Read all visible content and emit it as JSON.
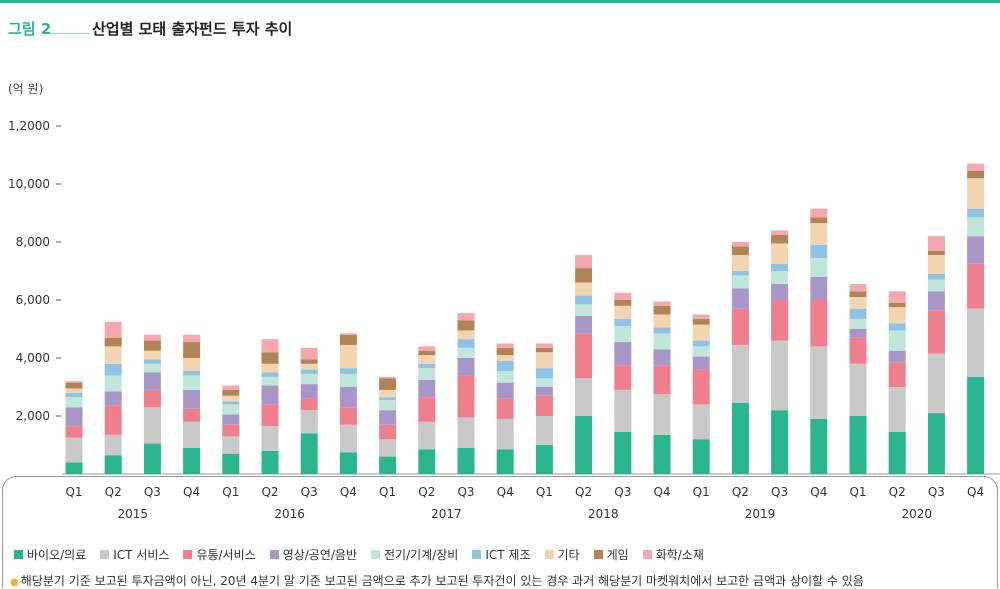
{
  "figure": {
    "number": "그림 2",
    "title": "산업별 모태 출자펀드 투자 추이",
    "unit": "(억 원)"
  },
  "footnote": "해당분기 기준 보고된 투자금액이 아닌, 20년 4분기 말 기준 보고된 금액으로 추가 보고된 투자건이 있는 경우 과거 해당분기 마켓워치에서 보고한 금액과 상이할 수 있음",
  "chart_data": {
    "type": "bar",
    "stacked": true,
    "categories": [
      "Q1",
      "Q2",
      "Q3",
      "Q4",
      "Q1",
      "Q2",
      "Q3",
      "Q4",
      "Q1",
      "Q2",
      "Q3",
      "Q4",
      "Q1",
      "Q2",
      "Q3",
      "Q4",
      "Q1",
      "Q2",
      "Q3",
      "Q4",
      "Q1",
      "Q2",
      "Q3",
      "Q4"
    ],
    "years": [
      "2015",
      "2016",
      "2017",
      "2018",
      "2019",
      "2020"
    ],
    "yticks": [
      0,
      2000,
      4000,
      6000,
      8000,
      10000,
      12000
    ],
    "ytick_labels": [
      "2,000",
      "4,000",
      "6,000",
      "8,000",
      "10,000",
      "1,2000"
    ],
    "ylim": [
      0,
      12000
    ],
    "legend_position": "bottom",
    "series": [
      {
        "name": "바이오/의료",
        "color": "#2bb58f",
        "values": [
          400,
          650,
          1050,
          900,
          700,
          800,
          1400,
          750,
          600,
          850,
          900,
          850,
          1000,
          2000,
          1450,
          1350,
          1200,
          2450,
          2200,
          1900,
          2000,
          1450,
          2100,
          3350
        ]
      },
      {
        "name": "ICT 서비스",
        "color": "#c9c9c9",
        "values": [
          850,
          700,
          1250,
          900,
          600,
          850,
          800,
          950,
          600,
          950,
          1050,
          1050,
          1000,
          1300,
          1450,
          1400,
          1200,
          2000,
          2400,
          2500,
          1800,
          1550,
          2050,
          2350
        ]
      },
      {
        "name": "유통/서비스",
        "color": "#f07f8e",
        "values": [
          400,
          1000,
          600,
          450,
          400,
          750,
          400,
          600,
          500,
          850,
          1450,
          700,
          700,
          1550,
          850,
          1000,
          1200,
          1250,
          1400,
          1600,
          900,
          850,
          1500,
          1550
        ]
      },
      {
        "name": "영상/공연/음반",
        "color": "#a996c8",
        "values": [
          650,
          500,
          600,
          650,
          350,
          650,
          500,
          700,
          500,
          600,
          600,
          550,
          300,
          600,
          800,
          550,
          450,
          700,
          550,
          800,
          300,
          400,
          650,
          950
        ]
      },
      {
        "name": "전기/기계/장비",
        "color": "#bfe6d8",
        "values": [
          350,
          550,
          300,
          500,
          350,
          300,
          350,
          450,
          350,
          400,
          350,
          400,
          300,
          400,
          550,
          550,
          350,
          450,
          450,
          650,
          350,
          700,
          400,
          650
        ]
      },
      {
        "name": "ICT 제조",
        "color": "#8ec3e6",
        "values": [
          150,
          400,
          150,
          150,
          100,
          150,
          150,
          200,
          100,
          150,
          300,
          350,
          350,
          300,
          250,
          200,
          200,
          150,
          250,
          450,
          350,
          250,
          200,
          300
        ]
      },
      {
        "name": "기타",
        "color": "#f2d5b0",
        "values": [
          150,
          600,
          300,
          450,
          200,
          300,
          200,
          800,
          250,
          300,
          300,
          200,
          550,
          450,
          450,
          450,
          550,
          550,
          700,
          750,
          400,
          550,
          650,
          1050
        ]
      },
      {
        "name": "게임",
        "color": "#b08455",
        "values": [
          200,
          300,
          350,
          550,
          200,
          400,
          150,
          350,
          400,
          150,
          350,
          250,
          150,
          500,
          200,
          300,
          200,
          300,
          300,
          200,
          200,
          150,
          150,
          250
        ]
      },
      {
        "name": "화학/소재",
        "color": "#f4a7ae",
        "values": [
          50,
          550,
          200,
          250,
          150,
          450,
          400,
          50,
          50,
          150,
          250,
          150,
          150,
          450,
          250,
          150,
          150,
          150,
          150,
          300,
          250,
          400,
          500,
          250
        ]
      }
    ]
  }
}
